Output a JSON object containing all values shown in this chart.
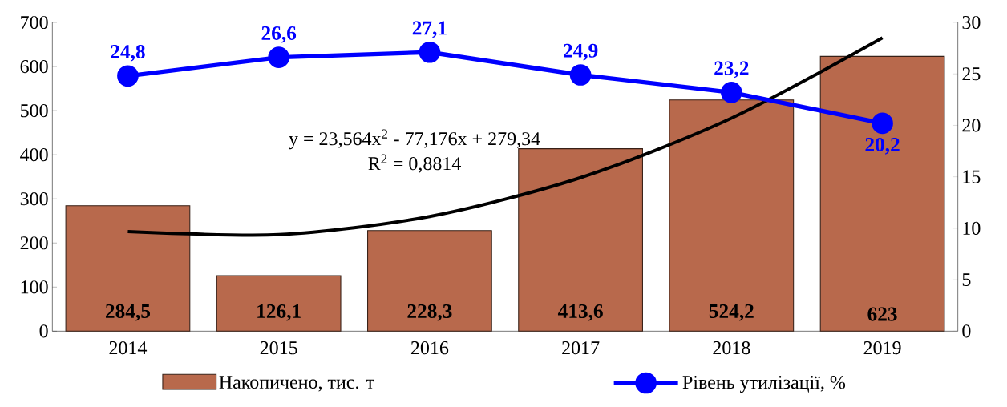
{
  "chart_data": {
    "type": "bar",
    "categories": [
      "2014",
      "2015",
      "2016",
      "2017",
      "2018",
      "2019"
    ],
    "series": [
      {
        "name": "Накопичено, тис. т",
        "color": "#b8694c",
        "values": [
          284.5,
          126.1,
          228.3,
          413.6,
          524.2,
          623
        ],
        "value_labels": [
          "284,5",
          "126,1",
          "228,3",
          "413,6",
          "524,2",
          "623"
        ]
      },
      {
        "type": "line",
        "name": "Рівень утилізації, %",
        "color": "#0000ff",
        "axis": "y2",
        "marker": "circle",
        "values": [
          24.8,
          26.6,
          27.1,
          24.9,
          23.2,
          20.2
        ],
        "value_labels": [
          "24,8",
          "26,6",
          "27,1",
          "24,9",
          "23,2",
          "20,2"
        ]
      },
      {
        "type": "line",
        "color": "#000000",
        "marker": "none",
        "values": [
          226,
          219,
          260,
          348,
          483,
          665
        ]
      }
    ],
    "ylim": [
      0,
      700
    ],
    "yticks": [
      0,
      100,
      200,
      300,
      400,
      500,
      600,
      700
    ],
    "y2lim": [
      0,
      30
    ],
    "y2ticks": [
      0,
      5,
      10,
      15,
      20,
      25,
      30
    ],
    "annotations": [
      "y = 23,564x$^{2}$ - 77,176x + 279,34",
      "R$^{2}$ = 0,8814"
    ],
    "legend": "bottom"
  }
}
